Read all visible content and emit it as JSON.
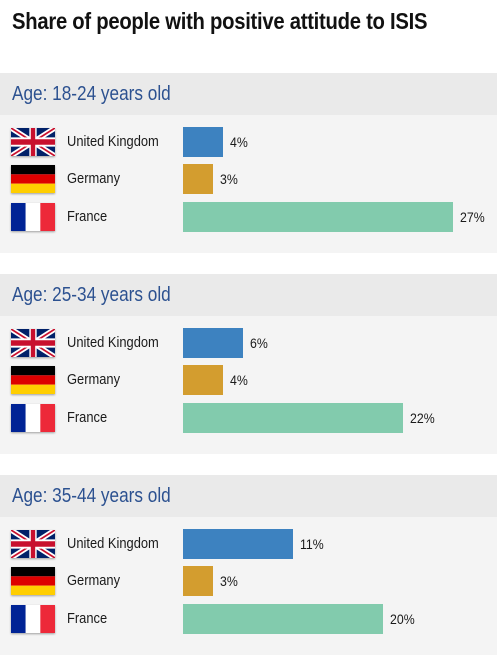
{
  "title": "Share of people with positive attitude to ISIS",
  "colors": {
    "United Kingdom": "#3d82c0",
    "Germany": "#d39d2f",
    "France": "#82cbad"
  },
  "chart_data": [
    {
      "type": "bar",
      "title": "Age: 18-24 years old",
      "categories": [
        "United Kingdom",
        "Germany",
        "France"
      ],
      "values": [
        4,
        3,
        27
      ],
      "labels": [
        "4%",
        "3%",
        "27%"
      ],
      "ylim": [
        0,
        27
      ]
    },
    {
      "type": "bar",
      "title": "Age: 25-34 years old",
      "categories": [
        "United Kingdom",
        "Germany",
        "France"
      ],
      "values": [
        6,
        4,
        22
      ],
      "labels": [
        "6%",
        "4%",
        "22%"
      ],
      "ylim": [
        0,
        27
      ]
    },
    {
      "type": "bar",
      "title": "Age: 35-44 years old",
      "categories": [
        "United Kingdom",
        "Germany",
        "France"
      ],
      "values": [
        11,
        3,
        20
      ],
      "labels": [
        "11%",
        "3%",
        "20%"
      ],
      "ylim": [
        0,
        27
      ]
    }
  ]
}
